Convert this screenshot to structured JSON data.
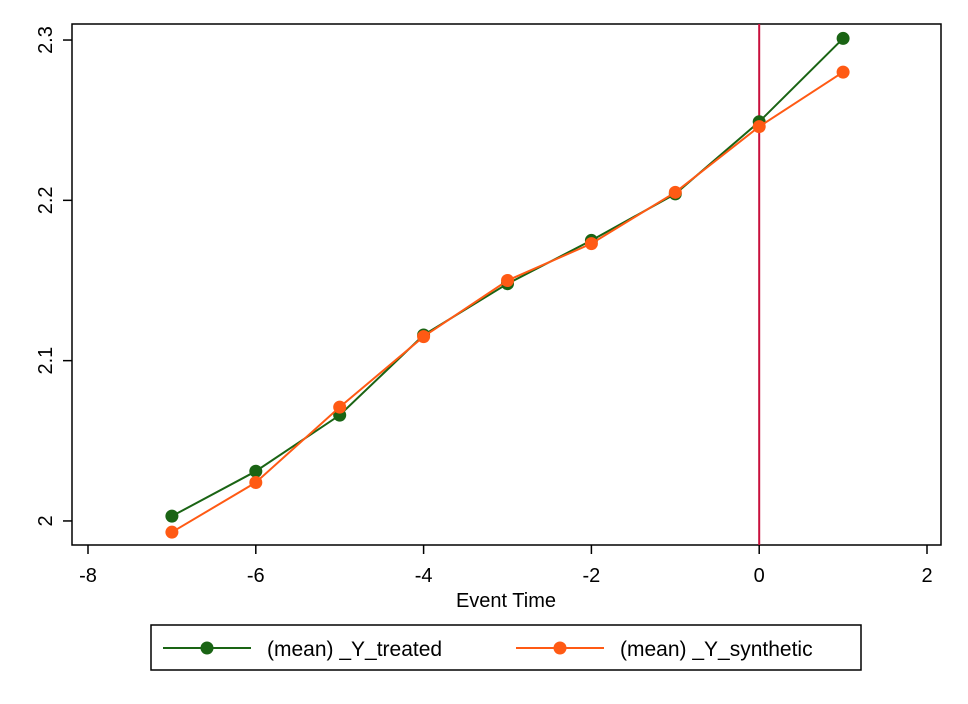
{
  "chart_data": {
    "type": "line",
    "title": "",
    "xlabel": "Event Time",
    "ylabel": "",
    "xlim": [
      -8,
      2
    ],
    "ylim": [
      1.985,
      2.31
    ],
    "xticks": [
      -8,
      -6,
      -4,
      -2,
      0,
      2
    ],
    "xtick_labels": [
      "-8",
      "-6",
      "-4",
      "-2",
      "0",
      "2"
    ],
    "yticks": [
      2.0,
      2.1,
      2.2,
      2.3
    ],
    "ytick_labels": [
      "2",
      "2.1",
      "2.2",
      "2.3"
    ],
    "x": [
      -7,
      -6,
      -5,
      -4,
      -3,
      -2,
      -1,
      0,
      1
    ],
    "series": [
      {
        "name": "(mean) _Y_treated",
        "color": "#1a6414",
        "values": [
          2.003,
          2.031,
          2.066,
          2.116,
          2.148,
          2.175,
          2.204,
          2.249,
          2.301
        ]
      },
      {
        "name": "(mean) _Y_synthetic",
        "color": "#ff5a14",
        "values": [
          1.993,
          2.024,
          2.071,
          2.115,
          2.15,
          2.173,
          2.205,
          2.246,
          2.28
        ]
      }
    ],
    "reference_line": {
      "x": 0,
      "color": "#c8103c"
    },
    "grid": false,
    "legend_placement": "bottom"
  }
}
